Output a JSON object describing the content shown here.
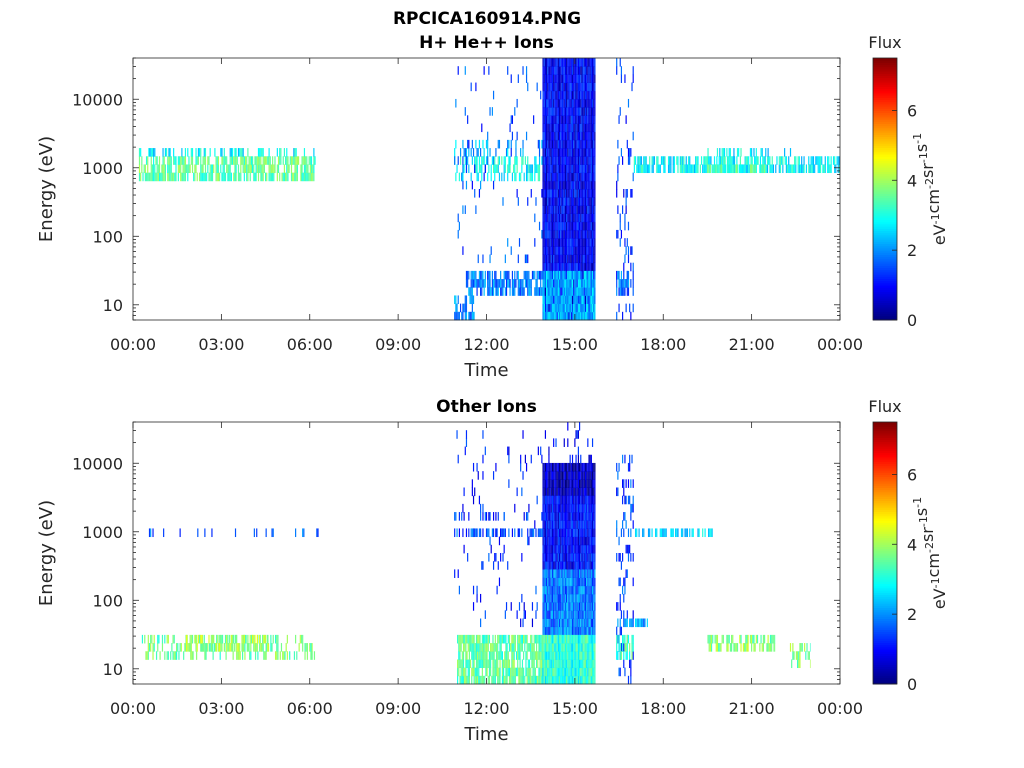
{
  "figure": {
    "filename": "RPCICA160914.PNG"
  },
  "chart_data": [
    {
      "type": "heatmap",
      "title": "H+ He++ Ions",
      "xlabel": "Time",
      "ylabel": "Energy (eV)",
      "x_tick_labels": [
        "00:00",
        "03:00",
        "06:00",
        "09:00",
        "12:00",
        "15:00",
        "18:00",
        "21:00",
        "00:00"
      ],
      "x_ticks_hours": [
        0,
        3,
        6,
        9,
        12,
        15,
        18,
        21,
        24
      ],
      "xlim_hours": [
        0,
        24
      ],
      "y_scale": "log",
      "y_tick_labels": [
        "10",
        "100",
        "1000",
        "10000"
      ],
      "y_ticks": [
        10,
        100,
        1000,
        10000
      ],
      "ylim": [
        6,
        40000
      ],
      "colorbar": {
        "label": "Flux",
        "units": [
          "eV",
          "-1",
          "cm",
          "-2",
          "sr",
          "-1",
          "s",
          "-1"
        ],
        "tick_labels": [
          "0",
          "2",
          "4",
          "6"
        ],
        "ticks": [
          0,
          2,
          4,
          6
        ],
        "range": [
          0,
          7.5
        ],
        "colormap": "jet"
      },
      "blocks": [
        {
          "t": [
            0.2,
            6.2
          ],
          "e": [
            700,
            1400
          ],
          "flux": 3.5,
          "density": 0.7
        },
        {
          "t": [
            0.2,
            6.2
          ],
          "e": [
            1600,
            2200
          ],
          "flux": 2.8,
          "density": 0.35
        },
        {
          "t": [
            10.9,
            13.9
          ],
          "e": [
            700,
            1400
          ],
          "flux": 2.9,
          "density": 0.45
        },
        {
          "t": [
            10.9,
            13.9
          ],
          "e": [
            1600,
            2500
          ],
          "flux": 2.2,
          "density": 0.25
        },
        {
          "t": [
            10.9,
            13.9
          ],
          "e": [
            40,
            30000
          ],
          "flux": 1.5,
          "density": 0.05
        },
        {
          "t": [
            11.3,
            13.9
          ],
          "e": [
            14,
            28
          ],
          "flux": 1.8,
          "density": 0.7
        },
        {
          "t": [
            10.9,
            11.6
          ],
          "e": [
            6,
            14
          ],
          "flux": 1.9,
          "density": 0.6
        },
        {
          "t": [
            13.9,
            15.7
          ],
          "e": [
            6,
            40000
          ],
          "flux": 0.9,
          "density": 1.0
        },
        {
          "t": [
            13.9,
            15.7
          ],
          "e": [
            6,
            30
          ],
          "flux": 2.3,
          "density": 0.9
        },
        {
          "t": [
            16.4,
            17.0
          ],
          "e": [
            6,
            40000
          ],
          "flux": 1.3,
          "density": 0.2
        },
        {
          "t": [
            16.4,
            17.0
          ],
          "e": [
            12,
            30
          ],
          "flux": 1.8,
          "density": 0.6
        },
        {
          "t": [
            17.0,
            24.0
          ],
          "e": [
            750,
            1300
          ],
          "flux": 2.8,
          "density": 0.7
        },
        {
          "t": [
            19.5,
            21.5
          ],
          "e": [
            800,
            1200
          ],
          "flux": 3.4,
          "density": 0.6
        },
        {
          "t": [
            19.5,
            22.5
          ],
          "e": [
            1600,
            2200
          ],
          "flux": 2.7,
          "density": 0.3
        }
      ]
    },
    {
      "type": "heatmap",
      "title": "Other Ions",
      "xlabel": "Time",
      "ylabel": "Energy (eV)",
      "x_tick_labels": [
        "00:00",
        "03:00",
        "06:00",
        "09:00",
        "12:00",
        "15:00",
        "18:00",
        "21:00",
        "00:00"
      ],
      "x_ticks_hours": [
        0,
        3,
        6,
        9,
        12,
        15,
        18,
        21,
        24
      ],
      "xlim_hours": [
        0,
        24
      ],
      "y_scale": "log",
      "y_tick_labels": [
        "10",
        "100",
        "1000",
        "10000"
      ],
      "y_ticks": [
        10,
        100,
        1000,
        10000
      ],
      "ylim": [
        6,
        40000
      ],
      "colorbar": {
        "label": "Flux",
        "units": [
          "eV",
          "-1",
          "cm",
          "-2",
          "sr",
          "-1",
          "s",
          "-1"
        ],
        "tick_labels": [
          "0",
          "2",
          "4",
          "6"
        ],
        "ticks": [
          0,
          2,
          4,
          6
        ],
        "range": [
          0,
          7.5
        ],
        "colormap": "jet"
      },
      "blocks": [
        {
          "t": [
            0.3,
            6.3
          ],
          "e": [
            850,
            1100
          ],
          "flux": 1.6,
          "density": 0.15
        },
        {
          "t": [
            0.3,
            6.3
          ],
          "e": [
            15,
            30
          ],
          "flux": 3.6,
          "density": 0.35
        },
        {
          "t": [
            1.8,
            4.6
          ],
          "e": [
            18,
            28
          ],
          "flux": 4.0,
          "density": 0.6
        },
        {
          "t": [
            10.9,
            13.9
          ],
          "e": [
            850,
            1200
          ],
          "flux": 1.5,
          "density": 0.5
        },
        {
          "t": [
            10.9,
            13.9
          ],
          "e": [
            1600,
            2200
          ],
          "flux": 1.3,
          "density": 0.2
        },
        {
          "t": [
            10.9,
            13.9
          ],
          "e": [
            40,
            30000
          ],
          "flux": 1.2,
          "density": 0.05
        },
        {
          "t": [
            11.0,
            13.9
          ],
          "e": [
            6,
            30
          ],
          "flux": 3.5,
          "density": 0.8
        },
        {
          "t": [
            13.9,
            15.7
          ],
          "e": [
            3000,
            11000
          ],
          "flux": 0.4,
          "density": 1.0
        },
        {
          "t": [
            13.9,
            15.7
          ],
          "e": [
            300,
            3000
          ],
          "flux": 1.0,
          "density": 1.0
        },
        {
          "t": [
            13.9,
            15.7
          ],
          "e": [
            30,
            300
          ],
          "flux": 1.8,
          "density": 1.0
        },
        {
          "t": [
            13.9,
            15.7
          ],
          "e": [
            6,
            30
          ],
          "flux": 3.1,
          "density": 1.0
        },
        {
          "t": [
            13.9,
            15.7
          ],
          "e": [
            11000,
            40000
          ],
          "flux": 1.0,
          "density": 0.1
        },
        {
          "t": [
            16.4,
            17.0
          ],
          "e": [
            6,
            12000
          ],
          "flux": 1.4,
          "density": 0.25
        },
        {
          "t": [
            16.4,
            17.0
          ],
          "e": [
            14,
            30
          ],
          "flux": 3.3,
          "density": 0.6
        },
        {
          "t": [
            16.4,
            17.5
          ],
          "e": [
            40,
            60
          ],
          "flux": 2.0,
          "density": 0.5
        },
        {
          "t": [
            17.0,
            19.7
          ],
          "e": [
            850,
            1100
          ],
          "flux": 2.5,
          "density": 0.55
        },
        {
          "t": [
            19.5,
            21.8
          ],
          "e": [
            18,
            30
          ],
          "flux": 3.8,
          "density": 0.6
        },
        {
          "t": [
            22.3,
            23.0
          ],
          "e": [
            10,
            25
          ],
          "flux": 3.7,
          "density": 0.3
        }
      ]
    }
  ]
}
